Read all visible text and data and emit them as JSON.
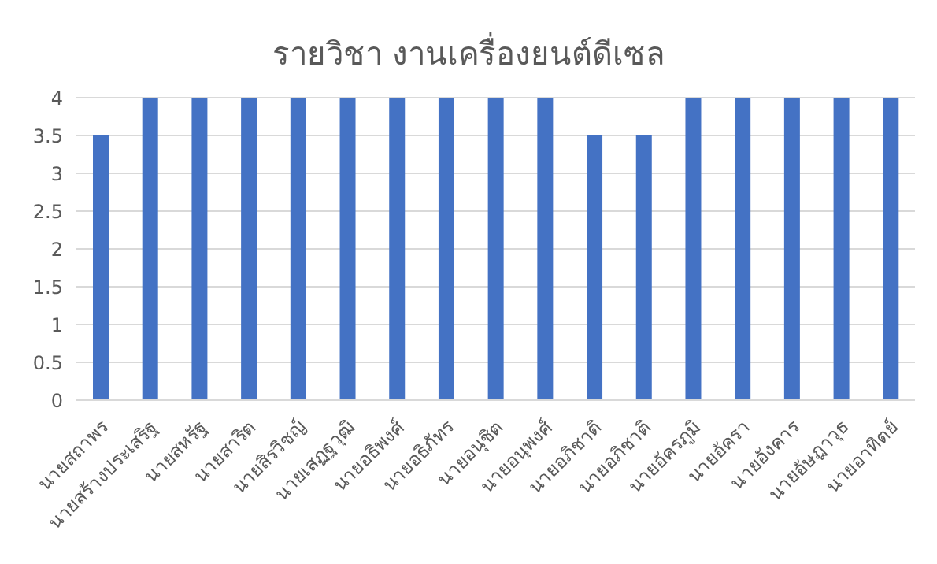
{
  "chart_data": {
    "type": "bar",
    "title": "รายวิชา งานเครื่องยนต์ดีเซล",
    "categories": [
      "นายสถาพร",
      "นายสร้างประเสริฐ",
      "นายสหรัฐ",
      "นายสาริต",
      "นายสิรวิชญ์",
      "นายเสฏฐวุฒิ",
      "นายอธิพงศ์",
      "นายอธิภัทร",
      "นายอนุชิต",
      "นายอนุพงศ์",
      "นายอภิชาติ",
      "นายอภิชาติ",
      "นายอัครภูมิ",
      "นายอัครา",
      "นายอังคาร",
      "นายอัษฎาวุธ",
      "นายอาทิตย์"
    ],
    "values": [
      3.5,
      4,
      4,
      4,
      4,
      4,
      4,
      4,
      4,
      4,
      3.5,
      3.5,
      4,
      4,
      4,
      4,
      4
    ],
    "color": "#4472c4",
    "ylim": [
      0,
      4
    ],
    "yticks": [
      0,
      0.5,
      1,
      1.5,
      2,
      2.5,
      3,
      3.5,
      4
    ],
    "grid": "y"
  }
}
